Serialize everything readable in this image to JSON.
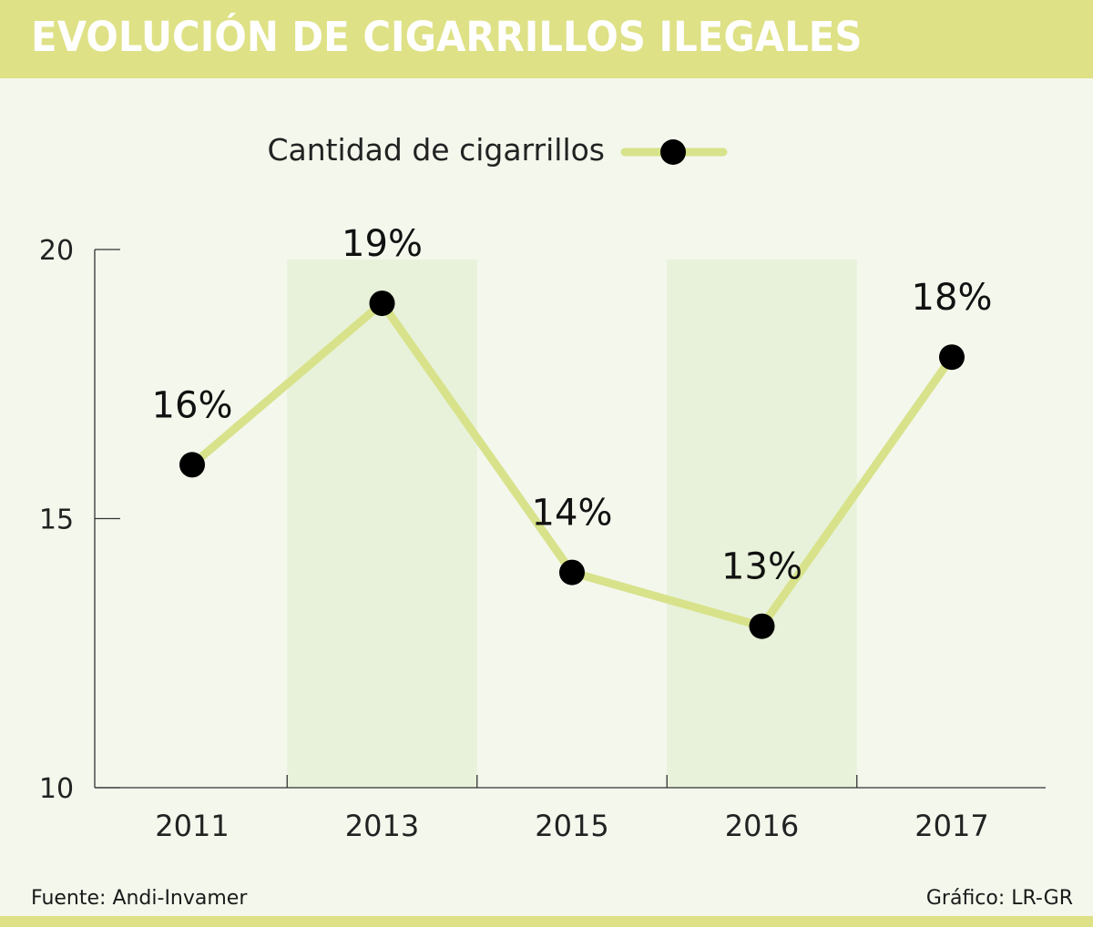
{
  "header": {
    "title": "EVOLUCIÓN DE CIGARRILLOS ILEGALES"
  },
  "footer": {
    "source": "Fuente: Andi-Invamer",
    "credit": "Gráfico: LR-GR"
  },
  "colors": {
    "header_bg": "#dee185",
    "line": "#d8e28a",
    "band": "#e8f2da",
    "point": "#000000",
    "background": "#f3f7ec"
  },
  "chart_data": {
    "type": "line",
    "categories": [
      "2011",
      "2013",
      "2015",
      "2016",
      "2017"
    ],
    "series": [
      {
        "name": "Cantidad de cigarrillos",
        "values": [
          16,
          19,
          14,
          13,
          18
        ]
      }
    ],
    "data_labels": [
      "16%",
      "19%",
      "14%",
      "13%",
      "18%"
    ],
    "ylim": [
      10,
      20
    ],
    "yticks": [
      10,
      15,
      20
    ],
    "legend": "top-center",
    "grid": false
  }
}
